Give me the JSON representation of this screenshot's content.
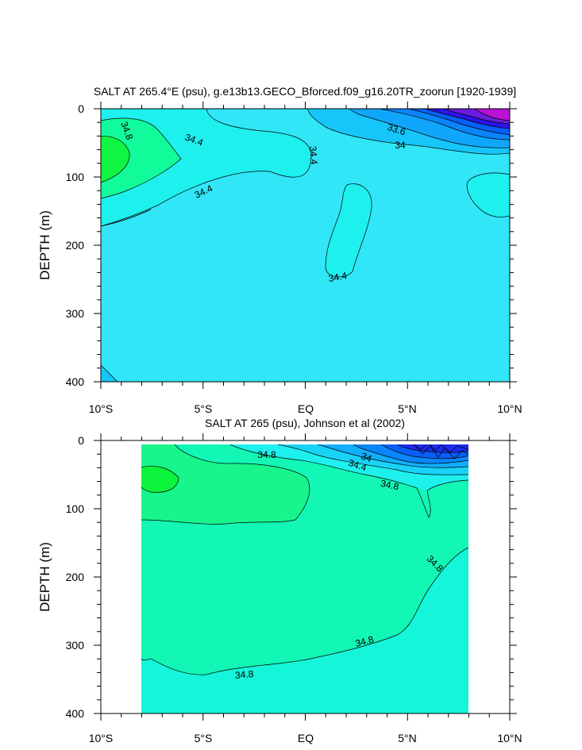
{
  "chart_data": [
    {
      "type": "contour",
      "title": "SALT AT 265.4°E (psu), g.e13b13.GECO_Bforced.f09_g16.20TR_zoorun [1920-1939]",
      "ylabel": "DEPTH (m)",
      "xlabel": "",
      "x_ticks": [
        "10°S",
        "5°S",
        "EQ",
        "5°N",
        "10°N"
      ],
      "x_tick_values": [
        -10,
        -5,
        0,
        5,
        10
      ],
      "y_ticks": [
        0,
        100,
        200,
        300,
        400
      ],
      "xlim": [
        -10,
        10
      ],
      "ylim": [
        400,
        0
      ],
      "y_inverted": true,
      "contour_labels": [
        {
          "text": "34.8",
          "x": -9.0,
          "y": 30
        },
        {
          "text": "34.4",
          "x": -5.5,
          "y": 45
        },
        {
          "text": "34.4",
          "x": 0.2,
          "y": 70
        },
        {
          "text": "34.4",
          "x": -5.0,
          "y": 120
        },
        {
          "text": "33.6",
          "x": 4.5,
          "y": 30
        },
        {
          "text": "34",
          "x": 4.8,
          "y": 55
        },
        {
          "text": "34.4",
          "x": 1.5,
          "y": 245
        }
      ]
    },
    {
      "type": "contour",
      "title": "SALT AT 265 (psu), Johnson et al (2002)",
      "ylabel": "DEPTH (m)",
      "xlabel": "",
      "x_ticks": [
        "10°S",
        "5°S",
        "EQ",
        "5°N",
        "10°N"
      ],
      "x_tick_values": [
        -10,
        -5,
        0,
        5,
        10
      ],
      "y_ticks": [
        0,
        100,
        200,
        300,
        400
      ],
      "xlim": [
        -10,
        10
      ],
      "ylim": [
        400,
        0
      ],
      "y_inverted": true,
      "data_extent_x": [
        -8,
        8
      ],
      "contour_labels": [
        {
          "text": "34.8",
          "x": -1.9,
          "y": 20
        },
        {
          "text": "34",
          "x": 3.1,
          "y": 27
        },
        {
          "text": "34.4",
          "x": 2.5,
          "y": 38
        },
        {
          "text": "34.8",
          "x": 4.0,
          "y": 65
        },
        {
          "text": "34.8",
          "x": 6.3,
          "y": 183
        },
        {
          "text": "34.8",
          "x": 2.9,
          "y": 295
        },
        {
          "text": "34.8",
          "x": -2.9,
          "y": 345
        }
      ]
    }
  ]
}
